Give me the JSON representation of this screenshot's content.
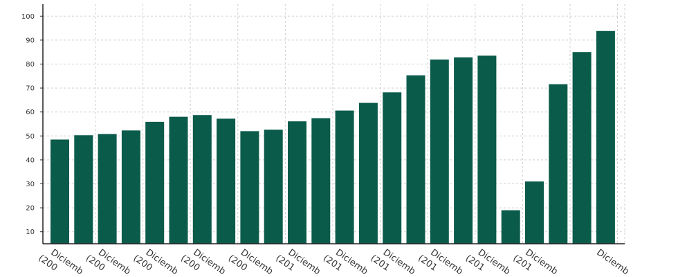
{
  "chart_data": {
    "type": "bar",
    "title": "",
    "xlabel": "",
    "ylabel": "",
    "ylim": [
      5,
      105
    ],
    "yticks": [
      10,
      20,
      30,
      40,
      50,
      60,
      70,
      80,
      90,
      100
    ],
    "grid": true,
    "legend": "none",
    "bar_color": "#0b5b4b",
    "categories": [
      [
        "Diciemb",
        "(200"
      ],
      null,
      [
        "Diciemb",
        "(200"
      ],
      null,
      [
        "Diciemb",
        "(200"
      ],
      null,
      [
        "Diciemb",
        "(200"
      ],
      null,
      [
        "Diciemb",
        "(200"
      ],
      null,
      [
        "Diciemb",
        "(201"
      ],
      null,
      [
        "Diciemb",
        "(201"
      ],
      null,
      [
        "Diciemb",
        "(201"
      ],
      null,
      [
        "Diciemb",
        "(201"
      ],
      null,
      [
        "Diciemb",
        "(201"
      ],
      null,
      [
        "Diciemb",
        "(201"
      ],
      null,
      null,
      [
        "Diciemb"
      ]
    ],
    "values": [
      48.5,
      50.3,
      50.8,
      52.3,
      55.9,
      58.0,
      58.7,
      57.2,
      52.0,
      52.6,
      56.1,
      57.4,
      60.6,
      63.8,
      68.2,
      75.3,
      81.9,
      82.8,
      83.5,
      19.0,
      31.0,
      71.6,
      85.0,
      93.8
    ]
  }
}
